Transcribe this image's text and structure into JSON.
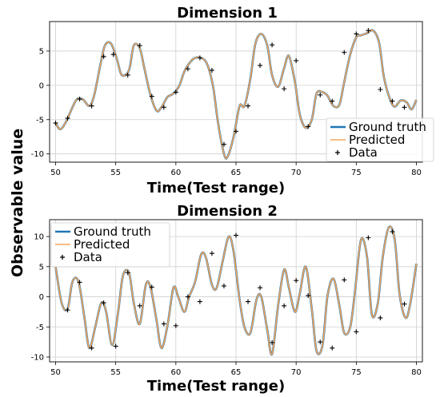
{
  "figure": {
    "ylabel": "Observable value"
  },
  "chart_data": [
    {
      "type": "line",
      "title": "Dimension 1",
      "xlabel": "Time(Test range)",
      "xlim": [
        49.5,
        80.5
      ],
      "ylim": [
        -11.2,
        9.3
      ],
      "xticks": [
        50,
        55,
        60,
        65,
        70,
        75,
        80
      ],
      "yticks": [
        -10,
        -5,
        0,
        5
      ],
      "grid": true,
      "legend_position": "lower-right",
      "legend": [
        "Ground truth",
        "Predicted",
        "Data"
      ],
      "colors": {
        "ground_truth": "#1f77b4",
        "predicted": "#f5a55a",
        "data": "#000000"
      },
      "series": [
        {
          "name": "Ground truth",
          "role": "truth",
          "x": [
            50,
            50.4,
            50.9,
            51.4,
            51.8,
            52.3,
            52.8,
            53.2,
            53.7,
            54.1,
            54.6,
            55.1,
            55.5,
            56.1,
            56.5,
            57,
            57.4,
            57.9,
            58.4,
            58.8,
            59.3,
            59.8,
            60.3,
            60.7,
            61.2,
            61.6,
            62.1,
            62.6,
            63.1,
            63.5,
            64,
            64.3,
            64.8,
            65.3,
            65.7,
            66.2,
            66.6,
            67.1,
            67.6,
            68,
            68.5,
            69,
            69.4,
            69.9,
            70.3,
            70.8,
            71.3,
            71.7,
            72.2,
            72.6,
            73.1,
            73.6,
            74,
            74.5,
            75,
            75.4,
            75.9,
            76.4,
            76.9,
            77.3,
            77.8,
            78.2,
            78.7,
            79.2,
            79.6,
            80
          ],
          "values": [
            -5.5,
            -6.4,
            -5.2,
            -3.2,
            -2.0,
            -2.1,
            -3.0,
            -1.5,
            2.8,
            5.8,
            6.1,
            3.8,
            1.5,
            2.2,
            5.8,
            5.4,
            2.3,
            -1.5,
            -3.7,
            -3.2,
            -1.7,
            -1.2,
            0.0,
            2.0,
            3.4,
            4.0,
            4.0,
            3.1,
            -0.2,
            -5.4,
            -10.0,
            -10.4,
            -7.5,
            -3.0,
            -3.0,
            1.0,
            6.0,
            7.5,
            5.8,
            1.5,
            -0.2,
            2.5,
            4.3,
            0.5,
            -4.2,
            -6.2,
            -5.0,
            -1.2,
            -1.0,
            -1.5,
            -3.0,
            -2.8,
            0.5,
            4.5,
            7.0,
            7.3,
            7.6,
            8.0,
            6.2,
            1.2,
            -2.0,
            -3.1,
            -2.2,
            -2.5,
            -3.5,
            -2.1
          ]
        },
        {
          "name": "Predicted",
          "role": "pred",
          "x": [
            50,
            50.4,
            50.9,
            51.4,
            51.8,
            52.3,
            52.8,
            53.2,
            53.7,
            54.1,
            54.6,
            55.1,
            55.5,
            56.1,
            56.5,
            57,
            57.4,
            57.9,
            58.4,
            58.8,
            59.3,
            59.8,
            60.3,
            60.7,
            61.2,
            61.6,
            62.1,
            62.6,
            63.1,
            63.5,
            64,
            64.3,
            64.8,
            65.3,
            65.7,
            66.2,
            66.6,
            67.1,
            67.6,
            68,
            68.5,
            69,
            69.4,
            69.9,
            70.3,
            70.8,
            71.3,
            71.7,
            72.2,
            72.6,
            73.1,
            73.6,
            74,
            74.5,
            75,
            75.4,
            75.9,
            76.4,
            76.9,
            77.3,
            77.8,
            78.2,
            78.7,
            79.2,
            79.6,
            80
          ],
          "values": [
            -5.5,
            -6.4,
            -5.2,
            -3.2,
            -2.0,
            -2.1,
            -3.0,
            -1.5,
            2.8,
            5.8,
            6.1,
            3.8,
            1.5,
            2.2,
            5.8,
            5.4,
            2.3,
            -1.5,
            -3.7,
            -3.2,
            -1.7,
            -1.2,
            0.0,
            2.0,
            3.4,
            4.0,
            4.0,
            3.1,
            -0.2,
            -5.4,
            -10.0,
            -10.4,
            -7.5,
            -3.0,
            -3.0,
            1.0,
            6.0,
            7.5,
            5.8,
            1.5,
            -0.2,
            2.5,
            4.3,
            0.5,
            -4.2,
            -6.2,
            -5.0,
            -1.2,
            -1.0,
            -1.5,
            -3.0,
            -2.8,
            0.5,
            4.5,
            7.0,
            7.3,
            7.6,
            8.0,
            6.2,
            1.2,
            -2.0,
            -3.1,
            -2.2,
            -2.5,
            -3.5,
            -2.1
          ]
        },
        {
          "name": "Data",
          "role": "data",
          "x": [
            50,
            51,
            52,
            53,
            54,
            54.8,
            56,
            57,
            58,
            59,
            60,
            61,
            62,
            63,
            64,
            65,
            66,
            67,
            68,
            69,
            70,
            71,
            72,
            73,
            74,
            75,
            76,
            77,
            78,
            79
          ],
          "values": [
            -5.5,
            -4.8,
            -2.0,
            -3.0,
            4.2,
            4.5,
            1.5,
            5.8,
            -1.6,
            -3.2,
            -1.0,
            2.4,
            4.0,
            2.2,
            -8.6,
            -6.7,
            -3.0,
            2.9,
            5.9,
            -0.5,
            3.6,
            -6.0,
            -1.4,
            -2.3,
            4.8,
            7.5,
            8.0,
            -0.6,
            -2.3,
            -3.2
          ]
        }
      ]
    },
    {
      "type": "line",
      "title": "Dimension 2",
      "xlabel": "Time(Test range)",
      "xlim": [
        49.5,
        80.5
      ],
      "ylim": [
        -10.8,
        12.8
      ],
      "xticks": [
        50,
        55,
        60,
        65,
        70,
        75,
        80
      ],
      "yticks": [
        -10,
        -5,
        0,
        5,
        10
      ],
      "grid": true,
      "legend_position": "upper-left",
      "legend": [
        "Ground truth",
        "Predicted",
        "Data"
      ],
      "colors": {
        "ground_truth": "#1f77b4",
        "predicted": "#f5a55a",
        "data": "#000000"
      },
      "series": [
        {
          "name": "Ground truth",
          "role": "truth",
          "x": [
            50,
            50.5,
            51,
            51.4,
            51.9,
            52.4,
            52.8,
            53.3,
            53.8,
            54.2,
            54.7,
            55.2,
            55.6,
            56.1,
            56.5,
            57.0,
            57.5,
            57.9,
            58.4,
            58.8,
            59.3,
            59.8,
            60.2,
            60.7,
            61.1,
            61.6,
            62.1,
            62.5,
            63.0,
            63.4,
            63.9,
            64.4,
            64.8,
            65.3,
            65.7,
            66.2,
            66.7,
            67.1,
            67.6,
            68.0,
            68.5,
            69.0,
            69.4,
            69.9,
            70.3,
            70.8,
            71.3,
            71.7,
            72.2,
            72.6,
            73.1,
            73.6,
            74.0,
            74.5,
            74.9,
            75.4,
            75.9,
            76.3,
            76.8,
            77.2,
            77.7,
            78.2,
            78.6,
            79.1,
            79.5,
            80.0
          ],
          "values": [
            5.0,
            -1.0,
            -2.0,
            2.5,
            2.5,
            -3.5,
            -8.5,
            -5.0,
            -1.0,
            -2.5,
            -8.0,
            -2.5,
            3.5,
            4.0,
            -1.0,
            -4.5,
            2.0,
            1.5,
            -4.0,
            -8.5,
            -4.8,
            1.5,
            0.0,
            -2.5,
            0.0,
            2.5,
            7.0,
            6.5,
            2.0,
            1.5,
            6.0,
            10.0,
            7.5,
            -0.5,
            -5.0,
            -6.0,
            -0.5,
            0.0,
            -5.5,
            -9.5,
            -1.5,
            4.5,
            1.5,
            -2.5,
            0.5,
            5.0,
            -2.0,
            -9.0,
            -8.0,
            0.0,
            3.0,
            -1.5,
            -6.0,
            -5.0,
            1.0,
            9.5,
            6.5,
            -3.0,
            -1.0,
            6.5,
            11.5,
            9.5,
            0.5,
            -3.5,
            -1.0,
            5.5
          ]
        },
        {
          "name": "Predicted",
          "role": "pred",
          "x": [
            50,
            50.5,
            51,
            51.4,
            51.9,
            52.4,
            52.8,
            53.3,
            53.8,
            54.2,
            54.7,
            55.2,
            55.6,
            56.1,
            56.5,
            57.0,
            57.5,
            57.9,
            58.4,
            58.8,
            59.3,
            59.8,
            60.2,
            60.7,
            61.1,
            61.6,
            62.1,
            62.5,
            63.0,
            63.4,
            63.9,
            64.4,
            64.8,
            65.3,
            65.7,
            66.2,
            66.7,
            67.1,
            67.6,
            68.0,
            68.5,
            69.0,
            69.4,
            69.9,
            70.3,
            70.8,
            71.3,
            71.7,
            72.2,
            72.6,
            73.1,
            73.6,
            74.0,
            74.5,
            74.9,
            75.4,
            75.9,
            76.3,
            76.8,
            77.2,
            77.7,
            78.2,
            78.6,
            79.1,
            79.5,
            80.0
          ],
          "values": [
            5.0,
            -1.0,
            -2.0,
            2.5,
            2.5,
            -3.5,
            -8.5,
            -5.0,
            -1.0,
            -2.5,
            -8.0,
            -2.5,
            3.5,
            4.0,
            -1.0,
            -4.5,
            2.0,
            1.5,
            -4.0,
            -8.5,
            -4.8,
            1.5,
            0.0,
            -2.5,
            0.0,
            2.5,
            7.0,
            6.5,
            2.0,
            1.5,
            6.0,
            10.0,
            7.5,
            -0.5,
            -5.0,
            -6.0,
            -0.5,
            0.0,
            -5.5,
            -9.5,
            -1.5,
            4.5,
            1.5,
            -2.5,
            0.5,
            5.0,
            -2.0,
            -9.0,
            -8.0,
            0.0,
            3.0,
            -1.5,
            -6.0,
            -5.0,
            1.0,
            9.5,
            6.5,
            -3.0,
            -1.0,
            6.5,
            11.5,
            9.5,
            0.5,
            -3.5,
            -1.0,
            5.5
          ]
        },
        {
          "name": "Data",
          "role": "data",
          "x": [
            51,
            52,
            53,
            54,
            55,
            56,
            57,
            58,
            59,
            60,
            61,
            62,
            63,
            64,
            65,
            66,
            67,
            68,
            69,
            70,
            71,
            72,
            73,
            74,
            75,
            76,
            77,
            78,
            79
          ],
          "values": [
            -2.2,
            2.4,
            -8.5,
            -1.0,
            -8.2,
            4.0,
            -1.5,
            1.6,
            -4.5,
            -4.8,
            0.0,
            -0.8,
            7.2,
            1.8,
            10.2,
            -0.8,
            1.5,
            -7.6,
            -1.5,
            2.7,
            0.2,
            -7.5,
            -8.5,
            2.8,
            -5.8,
            9.8,
            -3.5,
            10.8,
            -1.2
          ]
        }
      ]
    }
  ]
}
